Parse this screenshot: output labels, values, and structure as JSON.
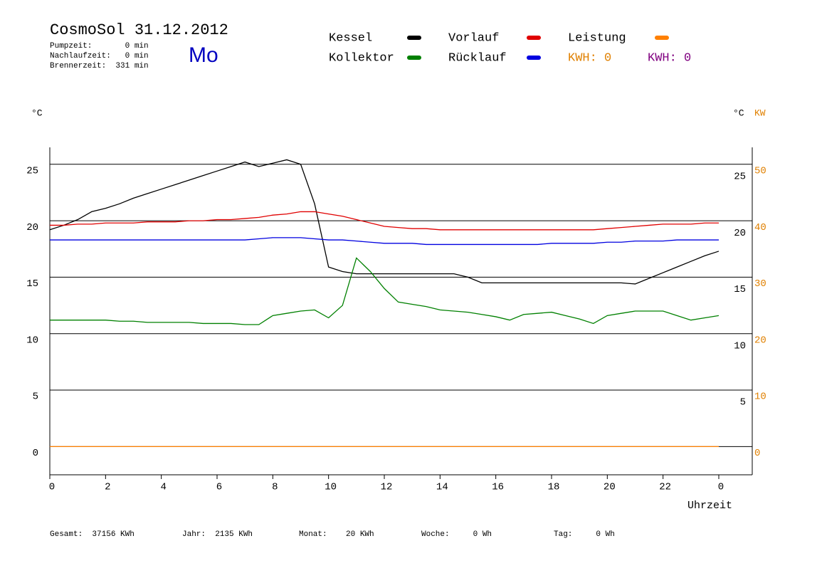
{
  "chart_data": {
    "type": "line",
    "title": "CosmoSol 31.12.2012",
    "info": [
      "Pumpzeit:       0 min",
      "Nachlaufzeit:   0 min",
      "Brennerzeit:  331 min"
    ],
    "weekday": "Mo",
    "y_unit": "°C",
    "y_unit_right": "°C",
    "y2_unit": "KW",
    "xlabel": "Uhrzeit",
    "x": [
      0,
      0.5,
      1,
      1.5,
      2,
      2.5,
      3,
      3.5,
      4,
      4.5,
      5,
      5.5,
      6,
      6.5,
      7,
      7.5,
      8,
      8.5,
      9,
      9.5,
      10,
      10.5,
      11,
      11.5,
      12,
      12.5,
      13,
      13.5,
      14,
      14.5,
      15,
      15.5,
      16,
      16.5,
      17,
      17.5,
      18,
      18.5,
      19,
      19.5,
      20,
      20.5,
      21,
      21.5,
      22,
      22.5,
      23,
      23.5,
      24
    ],
    "series": [
      {
        "name": "Kessel",
        "color": "#000000",
        "values": [
          19.2,
          19.6,
          20.1,
          20.8,
          21.1,
          21.5,
          22.0,
          22.4,
          22.8,
          23.2,
          23.6,
          24.0,
          24.4,
          24.8,
          25.2,
          24.8,
          25.1,
          25.4,
          25.0,
          21.5,
          15.9,
          15.5,
          15.3,
          15.3,
          15.3,
          15.3,
          15.3,
          15.3,
          15.3,
          15.3,
          15.0,
          14.5,
          14.5,
          14.5,
          14.5,
          14.5,
          14.5,
          14.5,
          14.5,
          14.5,
          14.5,
          14.5,
          14.4,
          14.9,
          15.4,
          15.9,
          16.4,
          16.9,
          17.3
        ]
      },
      {
        "name": "Kollektor",
        "color": "#008000",
        "values": [
          11.2,
          11.2,
          11.2,
          11.2,
          11.2,
          11.1,
          11.1,
          11.0,
          11.0,
          11.0,
          11.0,
          10.9,
          10.9,
          10.9,
          10.8,
          10.8,
          11.6,
          11.8,
          12.0,
          12.1,
          11.4,
          12.5,
          16.7,
          15.5,
          14.0,
          12.8,
          12.6,
          12.4,
          12.1,
          12.0,
          11.9,
          11.7,
          11.5,
          11.2,
          11.7,
          11.8,
          11.9,
          11.6,
          11.3,
          10.9,
          11.6,
          11.8,
          12.0,
          12.0,
          12.0,
          11.6,
          11.2,
          11.4,
          11.6
        ]
      },
      {
        "name": "Vorlauf",
        "color": "#e00000",
        "values": [
          19.6,
          19.6,
          19.7,
          19.7,
          19.8,
          19.8,
          19.8,
          19.9,
          19.9,
          19.9,
          20.0,
          20.0,
          20.1,
          20.1,
          20.2,
          20.3,
          20.5,
          20.6,
          20.8,
          20.8,
          20.6,
          20.4,
          20.1,
          19.8,
          19.5,
          19.4,
          19.3,
          19.3,
          19.2,
          19.2,
          19.2,
          19.2,
          19.2,
          19.2,
          19.2,
          19.2,
          19.2,
          19.2,
          19.2,
          19.2,
          19.3,
          19.4,
          19.5,
          19.6,
          19.7,
          19.7,
          19.7,
          19.8,
          19.8
        ]
      },
      {
        "name": "Rücklauf",
        "color": "#0000e0",
        "values": [
          18.3,
          18.3,
          18.3,
          18.3,
          18.3,
          18.3,
          18.3,
          18.3,
          18.3,
          18.3,
          18.3,
          18.3,
          18.3,
          18.3,
          18.3,
          18.4,
          18.5,
          18.5,
          18.5,
          18.4,
          18.3,
          18.3,
          18.2,
          18.1,
          18.0,
          18.0,
          18.0,
          17.9,
          17.9,
          17.9,
          17.9,
          17.9,
          17.9,
          17.9,
          17.9,
          17.9,
          18.0,
          18.0,
          18.0,
          18.0,
          18.1,
          18.1,
          18.2,
          18.2,
          18.2,
          18.3,
          18.3,
          18.3,
          18.3
        ]
      },
      {
        "name": "Leistung",
        "color": "#ff8000",
        "axis": "y2",
        "values": [
          0,
          0,
          0,
          0,
          0,
          0,
          0,
          0,
          0,
          0,
          0,
          0,
          0,
          0,
          0,
          0,
          0,
          0,
          0,
          0,
          0,
          0,
          0,
          0,
          0,
          0,
          0,
          0,
          0,
          0,
          0,
          0,
          0,
          0,
          0,
          0,
          0,
          0,
          0,
          0,
          0,
          0,
          0,
          0,
          0,
          0,
          0,
          0,
          0
        ]
      }
    ],
    "kwh_labels": [
      {
        "text": "KWH: 0",
        "color": "#e08000"
      },
      {
        "text": "KWH: 0",
        "color": "#800080"
      }
    ],
    "xlim": [
      0,
      25.2
    ],
    "xticks": [
      0,
      2,
      4,
      6,
      8,
      10,
      12,
      14,
      16,
      18,
      20,
      22,
      {
        "value": 24,
        "label": "0"
      }
    ],
    "ylim": [
      -2.5,
      26.5
    ],
    "yticks": [
      0,
      5,
      10,
      15,
      20,
      25
    ],
    "yticks_right": [
      5,
      10,
      15,
      20,
      25
    ],
    "y2lim": [
      -5,
      53
    ],
    "y2ticks": [
      0,
      10,
      20,
      30,
      40,
      50
    ],
    "grid": true,
    "footer": [
      "Gesamt:  37156 KWh",
      "Jahr:  2135 KWh",
      "Monat:    20 KWh",
      "Woche:     0 Wh",
      "Tag:     0 Wh"
    ]
  }
}
